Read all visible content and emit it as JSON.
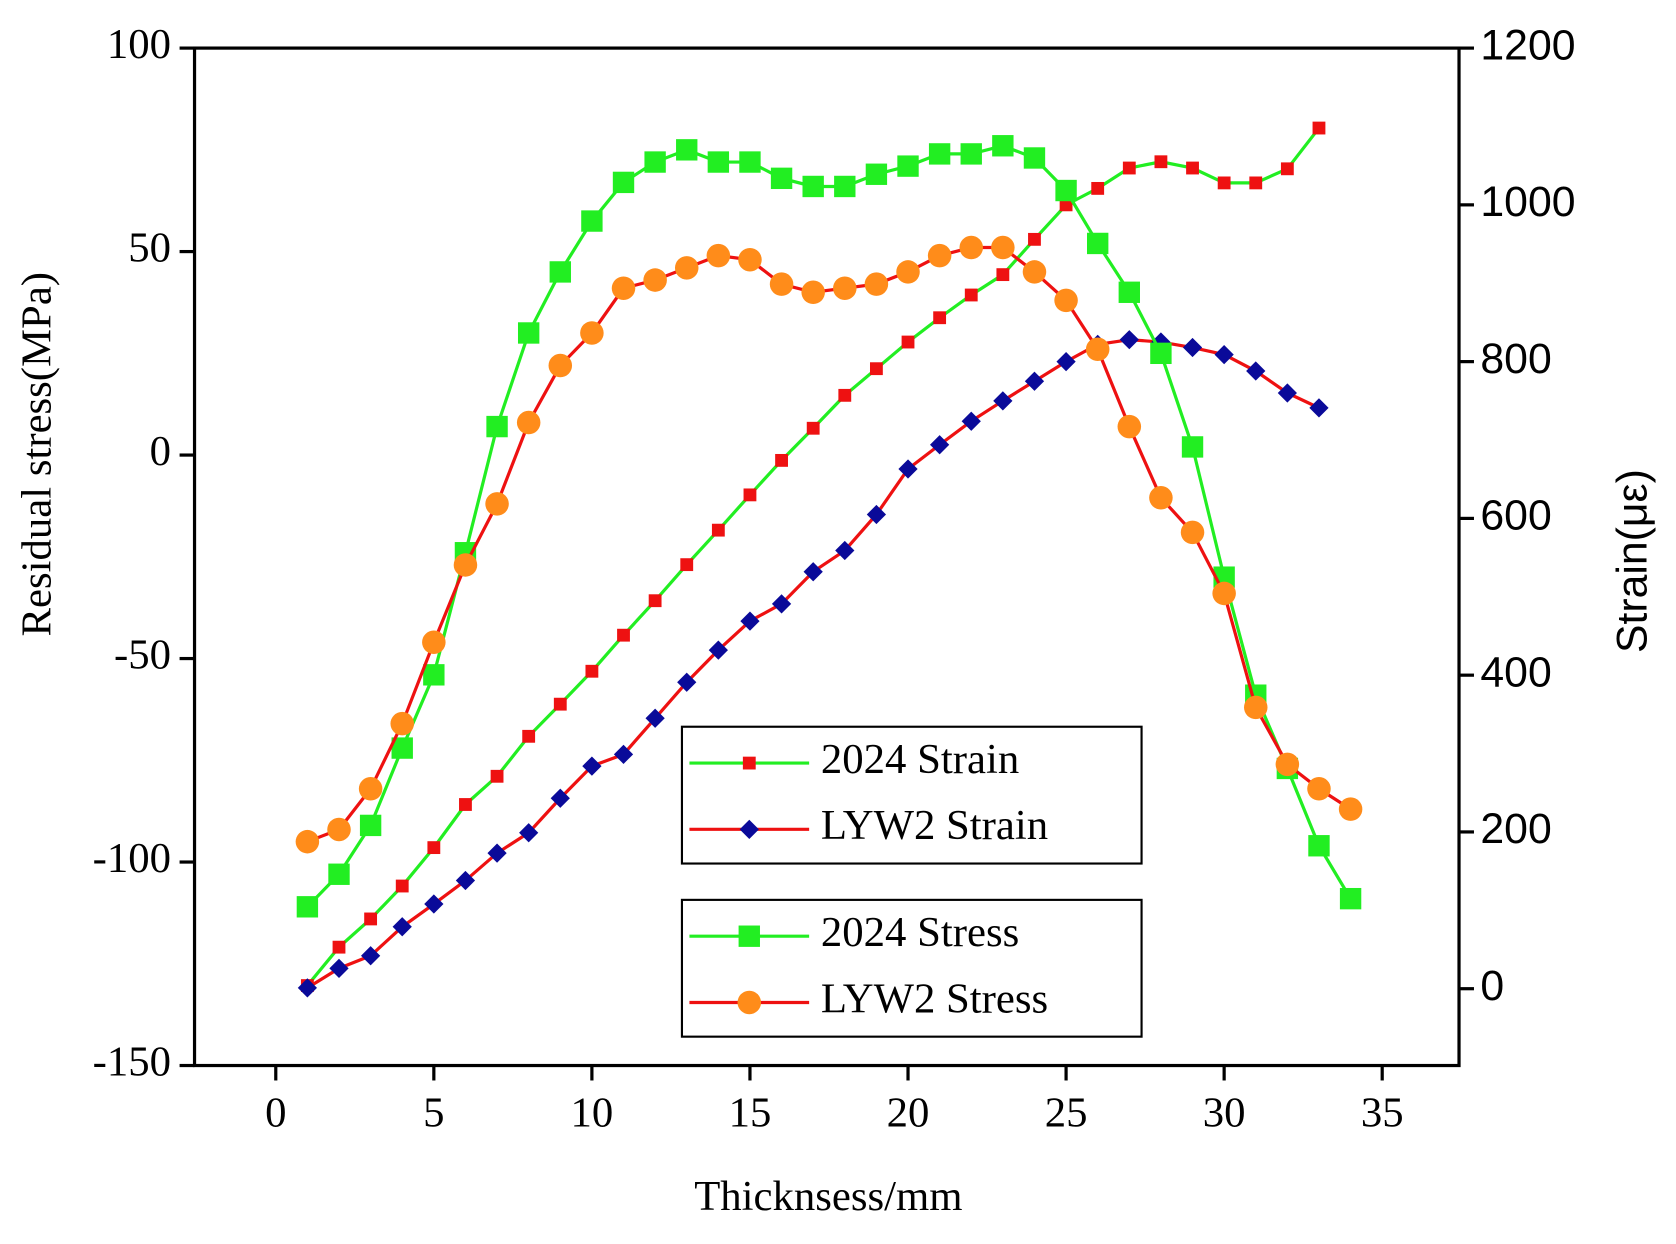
{
  "chart_data": {
    "type": "line",
    "xlabel": "Thicknsess/mm",
    "ylabel": "Residual stress(MPa)",
    "y2label": "Strain(με)",
    "x": [
      1,
      2,
      3,
      4,
      5,
      6,
      7,
      8,
      9,
      10,
      11,
      12,
      13,
      14,
      15,
      16,
      17,
      18,
      19,
      20,
      21,
      22,
      23,
      24,
      25,
      26,
      27,
      28,
      29,
      30,
      31,
      32,
      33,
      34
    ],
    "xlim": [
      -2.57,
      37.43
    ],
    "xticks": [
      0,
      5,
      10,
      15,
      20,
      25,
      30,
      35
    ],
    "ylim": [
      -150,
      100
    ],
    "yticks": [
      -150,
      -100,
      -50,
      0,
      50,
      100
    ],
    "y2lim": [
      -98,
      1200
    ],
    "y2ticks": [
      0,
      200,
      400,
      600,
      800,
      1000,
      1200
    ],
    "series": [
      {
        "name": "2024 Strain",
        "axis": "y2",
        "color": "#22ee22",
        "marker_color": "#ee1111",
        "marker": "square-small",
        "values": [
          4,
          53,
          89,
          131,
          180,
          235,
          271,
          322,
          363,
          405,
          451,
          495,
          541,
          585,
          630,
          674,
          715,
          757,
          791,
          825,
          856,
          885,
          911,
          956,
          1000,
          1021,
          1047,
          1055,
          1047,
          1028,
          1028,
          1046,
          1098,
          null
        ]
      },
      {
        "name": "LYW2 Strain",
        "axis": "y2",
        "color": "#ee1111",
        "marker_color": "#0a0a99",
        "marker": "diamond",
        "values": [
          1,
          26,
          42,
          79,
          108,
          138,
          173,
          199,
          243,
          284,
          299,
          345,
          391,
          432,
          469,
          491,
          532,
          559,
          605,
          663,
          694,
          724,
          750,
          775,
          800,
          822,
          828,
          825,
          818,
          809,
          788,
          760,
          741,
          null
        ]
      },
      {
        "name": "2024 Stress",
        "color": "#22ee22",
        "marker_color": "#22ee22",
        "marker": "square",
        "values": [
          -111,
          -103,
          -91,
          -72,
          -54,
          -24,
          7,
          30,
          45,
          57.5,
          67,
          72,
          75,
          72,
          72,
          68,
          66,
          66,
          69,
          71,
          74,
          74,
          76,
          73,
          65,
          52,
          40,
          25,
          2,
          -30,
          -59,
          -77,
          -96,
          -109
        ]
      },
      {
        "name": "LYW2 Stress",
        "color": "#ee1111",
        "marker_color": "#ff8c1a",
        "marker": "circle",
        "values": [
          -95,
          -92,
          -82,
          -66,
          -46,
          -27,
          -12,
          8,
          22,
          30,
          41,
          43,
          46,
          49,
          48,
          42,
          40,
          41,
          42,
          45,
          49,
          51,
          51,
          45,
          38,
          26,
          7,
          -10.5,
          -19,
          -34,
          -62,
          -76,
          -82,
          -87
        ]
      }
    ]
  }
}
